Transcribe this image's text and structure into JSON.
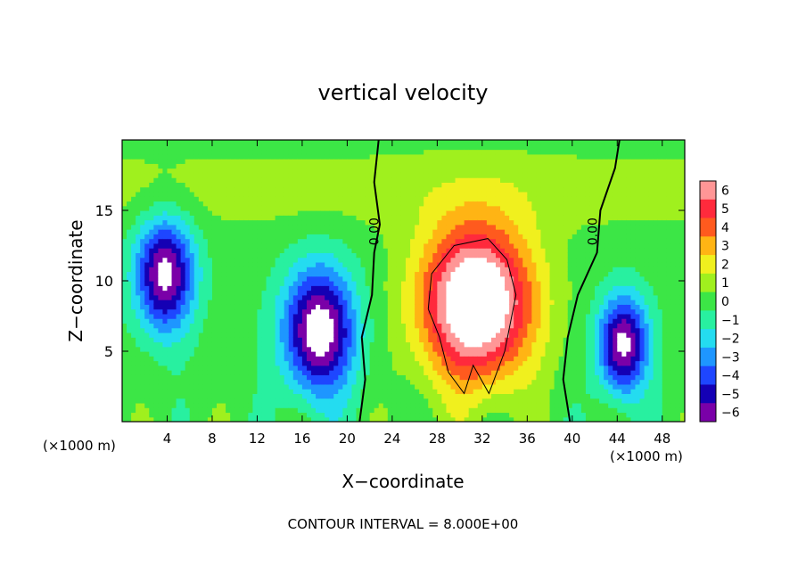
{
  "chart_data": {
    "type": "heatmap",
    "title": "vertical velocity",
    "xlabel": "X−coordinate",
    "ylabel": "Z−coordinate",
    "x_unit_left": "(×1000 m)",
    "x_unit_right": "(×1000 m)",
    "footer": "CONTOUR INTERVAL = 8.000E+00",
    "xlim": [
      0,
      50
    ],
    "ylim": [
      0,
      20
    ],
    "x_ticks": [
      4,
      8,
      12,
      16,
      20,
      24,
      28,
      32,
      36,
      40,
      44,
      48
    ],
    "y_ticks": [
      5,
      10,
      15
    ],
    "contour_labels": [
      {
        "text": "0.00",
        "x": 22.8,
        "y": 13.5
      },
      {
        "text": "0.00",
        "x": 42.2,
        "y": 13.5
      }
    ],
    "colorbar": {
      "range": [
        -6,
        6
      ],
      "tick_labels": [
        "6",
        "5",
        "4",
        "3",
        "2",
        "1",
        "0",
        "−1",
        "−2",
        "−3",
        "−4",
        "−5",
        "−6"
      ],
      "colors": {
        "-6": "#7a00a8",
        "-5": "#1400b4",
        "-4": "#1e46ff",
        "-3": "#1e96ff",
        "-2": "#24dcf0",
        "-1": "#28f0a0",
        "0": "#3ce646",
        "1": "#a0f01e",
        "2": "#f0f01e",
        "3": "#ffb414",
        "4": "#ff5a1e",
        "5": "#ff2a3c",
        "6": "#ff9696"
      }
    },
    "features": [
      {
        "kind": "updraft",
        "x": 31.5,
        "z": 8.5,
        "sx": 5.0,
        "sz": 5.5,
        "peak": 9
      },
      {
        "kind": "downdraft",
        "x": 3.8,
        "z": 10.5,
        "sx": 2.6,
        "sz": 4.0,
        "peak": -7
      },
      {
        "kind": "downdraft",
        "x": 17.5,
        "z": 6.5,
        "sx": 3.2,
        "sz": 4.5,
        "peak": -7.5
      },
      {
        "kind": "downdraft",
        "x": 44.5,
        "z": 5.5,
        "sx": 2.2,
        "sz": 3.5,
        "peak": -7
      }
    ]
  }
}
